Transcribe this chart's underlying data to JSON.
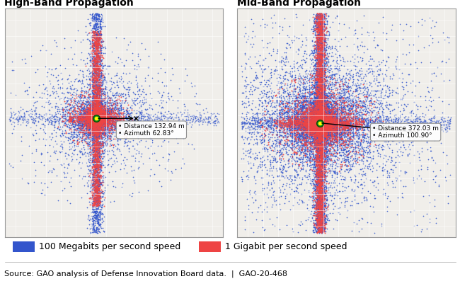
{
  "left_title": "High-Band Propagation",
  "right_title": "Mid-Band Propagation",
  "blue_label": "100 Megabits per second speed",
  "red_label": "1 Gigabit per second speed",
  "source_text": "Source: GAO analysis of Defense Innovation Board data.  |  GAO-20-468",
  "blue_color": "#3355cc",
  "red_color": "#ee4444",
  "bg_color": "#e8e8e8",
  "map_bg": "#f0eeea",
  "left_annotation": "• Distance 132.94 m\n• Azimuth 62.83°",
  "right_annotation": "• Distance 372.03 m\n• Azimuth 100.90°",
  "title_fontsize": 10,
  "legend_fontsize": 9,
  "source_fontsize": 8
}
